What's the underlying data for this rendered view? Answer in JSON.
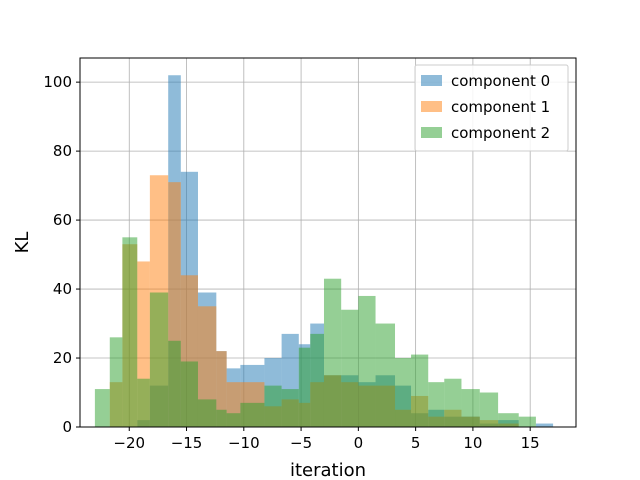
{
  "chart_data": {
    "type": "bar",
    "subtype": "histogram",
    "title": "",
    "xlabel": "iteration",
    "ylabel": "KL",
    "xlim": [
      -24.3,
      19.0
    ],
    "ylim": [
      0,
      107
    ],
    "xticks": [
      -20,
      -15,
      -10,
      -5,
      0,
      5,
      10,
      15
    ],
    "yticks": [
      0,
      20,
      40,
      60,
      80,
      100
    ],
    "grid": true,
    "legend_position": "top-right",
    "series": [
      {
        "name": "component 0",
        "color": "#1f77b4",
        "opacity": 0.5,
        "bins": [
          [
            -21.7,
            -19.3,
            0
          ],
          [
            -19.3,
            -18.2,
            2
          ],
          [
            -18.2,
            -16.6,
            12
          ],
          [
            -16.6,
            -15.5,
            102
          ],
          [
            -15.5,
            -14.0,
            74
          ],
          [
            -14.0,
            -12.4,
            39
          ],
          [
            -12.4,
            -11.5,
            22
          ],
          [
            -11.5,
            -10.3,
            17
          ],
          [
            -10.3,
            -8.2,
            18
          ],
          [
            -8.2,
            -6.7,
            20
          ],
          [
            -6.7,
            -5.2,
            27
          ],
          [
            -5.2,
            -4.2,
            24
          ],
          [
            -4.2,
            -3.0,
            30
          ],
          [
            -3.0,
            -1.5,
            15
          ],
          [
            -1.5,
            0.0,
            15
          ],
          [
            0.0,
            1.5,
            13
          ],
          [
            1.5,
            3.2,
            15
          ],
          [
            3.2,
            4.6,
            12
          ],
          [
            4.6,
            6.1,
            4
          ],
          [
            6.1,
            7.5,
            5
          ],
          [
            7.5,
            9.0,
            3
          ],
          [
            9.0,
            10.6,
            3
          ],
          [
            10.6,
            12.2,
            1
          ],
          [
            12.2,
            14.0,
            2
          ],
          [
            14.0,
            15.5,
            0
          ],
          [
            15.5,
            17.0,
            1
          ]
        ]
      },
      {
        "name": "component 1",
        "color": "#ff7f0e",
        "opacity": 0.5,
        "bins": [
          [
            -21.7,
            -20.6,
            13
          ],
          [
            -20.6,
            -19.3,
            53
          ],
          [
            -19.3,
            -18.2,
            48
          ],
          [
            -18.2,
            -16.6,
            73
          ],
          [
            -16.6,
            -15.5,
            71
          ],
          [
            -15.5,
            -14.0,
            44
          ],
          [
            -14.0,
            -12.4,
            35
          ],
          [
            -12.4,
            -11.5,
            22
          ],
          [
            -11.5,
            -10.3,
            13
          ],
          [
            -10.3,
            -8.2,
            13
          ],
          [
            -8.2,
            -6.7,
            6
          ],
          [
            -6.7,
            -5.2,
            8
          ],
          [
            -5.2,
            -4.2,
            7
          ],
          [
            -4.2,
            -3.0,
            13
          ],
          [
            -3.0,
            -1.5,
            15
          ],
          [
            -1.5,
            0.0,
            13
          ],
          [
            0.0,
            1.5,
            12
          ],
          [
            1.5,
            3.2,
            12
          ],
          [
            3.2,
            4.6,
            5
          ],
          [
            4.6,
            6.1,
            9
          ],
          [
            6.1,
            7.5,
            3
          ],
          [
            7.5,
            9.0,
            5
          ],
          [
            9.0,
            10.6,
            3
          ],
          [
            10.6,
            12.2,
            2
          ],
          [
            12.2,
            14.0,
            1
          ]
        ]
      },
      {
        "name": "component 2",
        "color": "#2ca02c",
        "opacity": 0.5,
        "bins": [
          [
            -23.0,
            -21.7,
            11
          ],
          [
            -21.7,
            -20.6,
            26
          ],
          [
            -20.6,
            -19.3,
            55
          ],
          [
            -19.3,
            -18.2,
            14
          ],
          [
            -18.2,
            -16.6,
            39
          ],
          [
            -16.6,
            -15.5,
            25
          ],
          [
            -15.5,
            -14.0,
            19
          ],
          [
            -14.0,
            -12.4,
            8
          ],
          [
            -12.4,
            -11.5,
            5
          ],
          [
            -11.5,
            -10.3,
            4
          ],
          [
            -10.3,
            -8.2,
            7
          ],
          [
            -8.2,
            -6.7,
            12
          ],
          [
            -6.7,
            -5.2,
            11
          ],
          [
            -5.2,
            -4.2,
            23
          ],
          [
            -4.2,
            -3.0,
            27
          ],
          [
            -3.0,
            -1.5,
            43
          ],
          [
            -1.5,
            0.0,
            34
          ],
          [
            0.0,
            1.5,
            38
          ],
          [
            1.5,
            3.2,
            30
          ],
          [
            3.2,
            4.6,
            20
          ],
          [
            4.6,
            6.1,
            21
          ],
          [
            6.1,
            7.5,
            13
          ],
          [
            7.5,
            9.0,
            14
          ],
          [
            9.0,
            10.6,
            11
          ],
          [
            10.6,
            12.2,
            10
          ],
          [
            12.2,
            14.0,
            4
          ],
          [
            14.0,
            15.5,
            3
          ]
        ]
      }
    ]
  }
}
